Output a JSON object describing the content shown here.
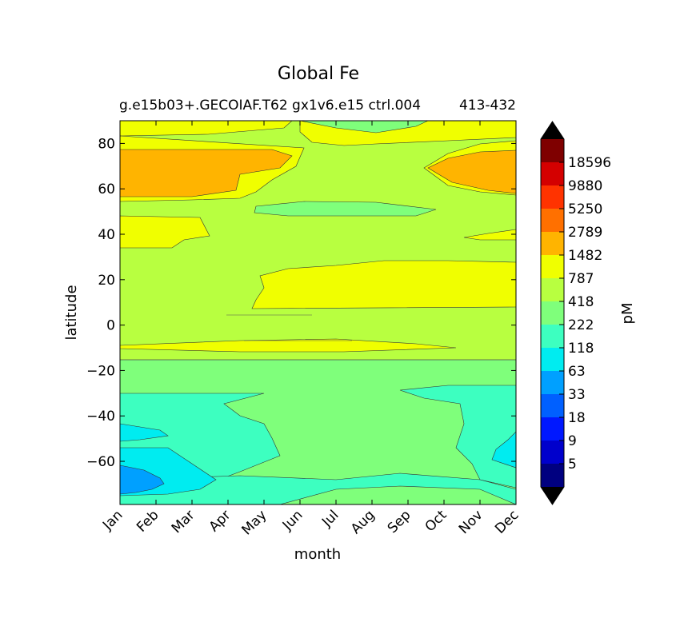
{
  "chart_data": {
    "type": "contourf",
    "title": "Global Fe",
    "subtitle": "g.e15b03+.GECOIAF.T62 gx1v6.e15 ctrl.004",
    "subtitle_years": "413-432",
    "xlabel": "month",
    "ylabel": "latitude",
    "categories": [
      "Jan",
      "Feb",
      "Mar",
      "Apr",
      "May",
      "Jun",
      "Jul",
      "Aug",
      "Sep",
      "Oct",
      "Nov",
      "Dec"
    ],
    "y_ticks": [
      80,
      60,
      40,
      20,
      0,
      -20,
      -40,
      -60
    ],
    "y_tick_labels": [
      "80",
      "60",
      "40",
      "20",
      "0",
      "−20",
      "−40",
      "−60"
    ],
    "ylim": [
      -79,
      90
    ],
    "colorbar": {
      "label": "pM",
      "tick_labels": [
        "18596",
        "9880",
        "5250",
        "2789",
        "1482",
        "787",
        "418",
        "222",
        "118",
        "63",
        "33",
        "18",
        "9",
        "5"
      ],
      "colors": [
        "#7f0000",
        "#d40000",
        "#ff3300",
        "#ff7000",
        "#ffb400",
        "#f0ff00",
        "#b8ff40",
        "#7fff7b",
        "#3dffc0",
        "#00ecf0",
        "#00a0ff",
        "#0060ff",
        "#0018ff",
        "#0000cc",
        "#000080"
      ],
      "over_color": "#000000",
      "under_color": "#000000"
    },
    "bands": {
      "color_1482": "#f0ff00",
      "color_787": "#b8ff40",
      "color_418": "#7fff7b",
      "color_222": "#3dffc0",
      "color_118": "#00ecf0",
      "color_63": "#00a0ff",
      "color_2789": "#ffb400"
    }
  }
}
